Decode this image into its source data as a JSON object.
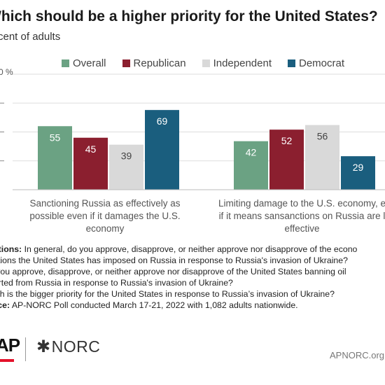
{
  "header": {
    "title": "Which should be a higher priority for the United States?",
    "subtitle": "rcent of adults"
  },
  "legend": [
    {
      "label": "Overall",
      "color": "#6ba283"
    },
    {
      "label": "Republican",
      "color": "#8b1f2f"
    },
    {
      "label": "Independent",
      "color": "#d9d9d9"
    },
    {
      "label": "Democrat",
      "color": "#1a5e7e"
    }
  ],
  "chart_data": {
    "type": "bar",
    "categories": [
      "Sanctioning Russia as effectively as\npossible even if it damages the U.S.\neconomy",
      "Limiting damage to the U.S. economy, e\nif it means sansanctions on Russia are l\neffective"
    ],
    "series": [
      {
        "name": "Overall",
        "values": [
          55,
          42
        ],
        "color": "#6ba283"
      },
      {
        "name": "Republican",
        "values": [
          45,
          52
        ],
        "color": "#8b1f2f"
      },
      {
        "name": "Independent",
        "values": [
          39,
          56
        ],
        "color": "#d9d9d9"
      },
      {
        "name": "Democrat",
        "values": [
          69,
          29
        ],
        "color": "#1a5e7e"
      }
    ],
    "ylim": [
      0,
      100
    ],
    "y_ticks": [
      0,
      25,
      50,
      75,
      100
    ],
    "y_top_label": "0 %",
    "grid": true,
    "legend_position": "top"
  },
  "notes": {
    "questions_label": "estions:",
    "lines": [
      " In general, do you approve, disapprove, or neither approve nor disapprove of the econo",
      "nctions the United States has imposed on Russia in response to Russia's invasion of Ukraine?",
      "o you approve, disapprove, or neither approve nor disapprove of the United States banning oil",
      "ported from Russia in response to Russia's invasion of Ukraine?",
      "hich is the bigger priority for the United States in response to Russia’s invasion of Ukraine?"
    ],
    "source_label": "urce:",
    "source_text": " AP-NORC Poll conducted March 17-21, 2022 with 1,082 adults nationwide."
  },
  "footer": {
    "ap_logo": "AP",
    "norc_logo": "NORC",
    "site": "APNORC.org"
  }
}
